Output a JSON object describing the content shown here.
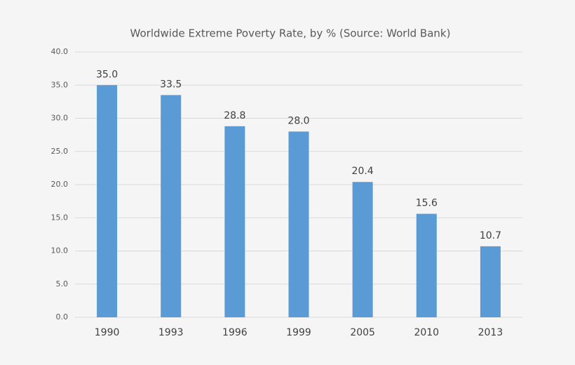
{
  "chart_data": {
    "type": "bar",
    "title": "Worldwide Extreme Poverty Rate, by % (Source: World Bank)",
    "categories": [
      "1990",
      "1993",
      "1996",
      "1999",
      "2005",
      "2010",
      "2013"
    ],
    "values": [
      35.0,
      33.5,
      28.8,
      28.0,
      20.4,
      15.6,
      10.7
    ],
    "value_labels": [
      "35.0",
      "33.5",
      "28.8",
      "28.0",
      "20.4",
      "15.6",
      "10.7"
    ],
    "color": "#5b9bd5",
    "ylim": [
      0,
      40
    ],
    "yticks": [
      {
        "value": 0,
        "label": "0.0"
      },
      {
        "value": 5,
        "label": "5.0"
      },
      {
        "value": 10,
        "label": "10.0"
      },
      {
        "value": 15,
        "label": "15.0"
      },
      {
        "value": 20,
        "label": "20.0"
      },
      {
        "value": 25,
        "label": "25.0"
      },
      {
        "value": 30,
        "label": "30.0"
      },
      {
        "value": 35,
        "label": "35.0"
      },
      {
        "value": 40,
        "label": "40.0"
      }
    ],
    "grid": true
  }
}
